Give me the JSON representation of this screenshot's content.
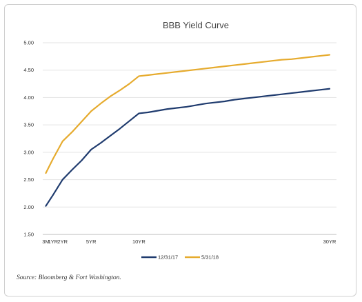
{
  "chart_data": {
    "type": "line",
    "title": "BBB Yield Curve",
    "xlabel": "",
    "ylabel": "",
    "x_maturity_years": [
      0.25,
      1,
      2,
      3,
      4,
      5,
      6,
      7,
      8,
      9,
      10,
      11,
      12,
      13,
      14,
      15,
      16,
      17,
      18,
      19,
      20,
      21,
      22,
      23,
      24,
      25,
      26,
      27,
      28,
      29,
      30
    ],
    "x_tick_labels": [
      {
        "label": "3M",
        "x": 0.25
      },
      {
        "label": "1YR",
        "x": 1
      },
      {
        "label": "2YR",
        "x": 2
      },
      {
        "label": "5YR",
        "x": 5
      },
      {
        "label": "10YR",
        "x": 10
      },
      {
        "label": "30YR",
        "x": 30
      }
    ],
    "y_ticks": [
      "1.50",
      "2.00",
      "2.50",
      "3.00",
      "3.50",
      "4.00",
      "4.50",
      "5.00"
    ],
    "ylim": [
      1.5,
      5.0
    ],
    "xlim": [
      0,
      30.25
    ],
    "grid": "horizontal",
    "legend_position": "bottom",
    "series": [
      {
        "name": "12/31/17",
        "color": "#1f3b6e",
        "values": [
          2.02,
          2.22,
          2.5,
          2.68,
          2.85,
          3.05,
          3.17,
          3.3,
          3.43,
          3.57,
          3.71,
          3.73,
          3.76,
          3.79,
          3.81,
          3.83,
          3.86,
          3.89,
          3.91,
          3.93,
          3.96,
          3.98,
          4.0,
          4.02,
          4.04,
          4.06,
          4.08,
          4.1,
          4.12,
          4.14,
          4.16
        ]
      },
      {
        "name": "5/31/18",
        "color": "#e6ab2e",
        "values": [
          2.62,
          2.88,
          3.2,
          3.37,
          3.56,
          3.75,
          3.89,
          4.02,
          4.13,
          4.25,
          4.39,
          4.41,
          4.43,
          4.45,
          4.47,
          4.49,
          4.51,
          4.53,
          4.55,
          4.57,
          4.59,
          4.61,
          4.63,
          4.65,
          4.67,
          4.69,
          4.7,
          4.72,
          4.74,
          4.76,
          4.78
        ]
      }
    ]
  },
  "source_note": "Source: Bloomberg & Fort Washington."
}
